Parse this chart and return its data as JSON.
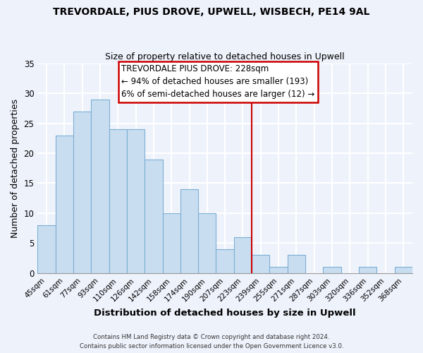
{
  "title": "TREVORDALE, PIUS DROVE, UPWELL, WISBECH, PE14 9AL",
  "subtitle": "Size of property relative to detached houses in Upwell",
  "xlabel": "Distribution of detached houses by size in Upwell",
  "ylabel": "Number of detached properties",
  "bar_color": "#c9ddf0",
  "bar_edgecolor": "#7bafd4",
  "categories": [
    "45sqm",
    "61sqm",
    "77sqm",
    "93sqm",
    "110sqm",
    "126sqm",
    "142sqm",
    "158sqm",
    "174sqm",
    "190sqm",
    "207sqm",
    "223sqm",
    "239sqm",
    "255sqm",
    "271sqm",
    "287sqm",
    "303sqm",
    "320sqm",
    "336sqm",
    "352sqm",
    "368sqm"
  ],
  "values": [
    8,
    23,
    27,
    29,
    24,
    24,
    19,
    10,
    14,
    10,
    4,
    6,
    3,
    1,
    3,
    0,
    1,
    0,
    1,
    0,
    1
  ],
  "ylim": [
    0,
    35
  ],
  "yticks": [
    0,
    5,
    10,
    15,
    20,
    25,
    30,
    35
  ],
  "vline_index": 11.5,
  "annotation_title": "TREVORDALE PIUS DROVE: 228sqm",
  "annotation_line1": "← 94% of detached houses are smaller (193)",
  "annotation_line2": "6% of semi-detached houses are larger (12) →",
  "footer1": "Contains HM Land Registry data © Crown copyright and database right 2024.",
  "footer2": "Contains public sector information licensed under the Open Government Licence v3.0.",
  "background_color": "#eef2fb",
  "grid_color": "white",
  "annotation_box_color": "white",
  "annotation_box_edgecolor": "#cc0000",
  "vline_color": "#cc0000"
}
